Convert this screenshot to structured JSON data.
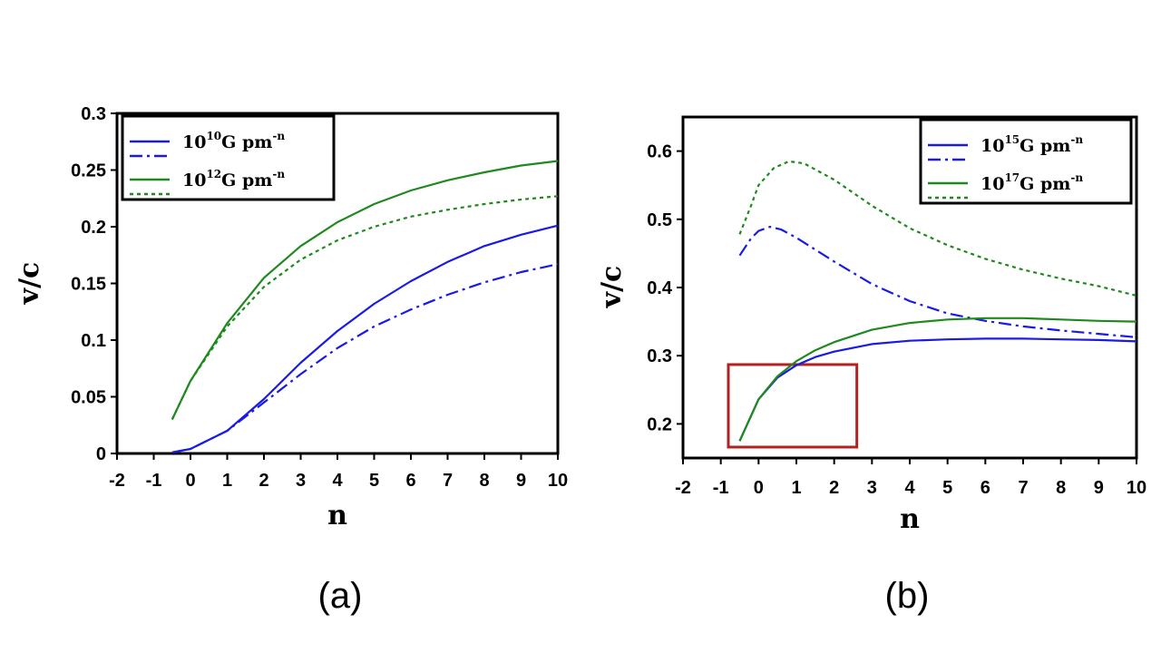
{
  "chart_data": [
    {
      "type": "line",
      "caption": "(a)",
      "xlabel": "n",
      "ylabel": "v/c",
      "xlim": [
        -2,
        10
      ],
      "ylim": [
        0,
        0.3
      ],
      "xticks": [
        "-2",
        "-1",
        "0",
        "1",
        "2",
        "3",
        "4",
        "5",
        "6",
        "7",
        "8",
        "9",
        "10"
      ],
      "yticks": [
        "0",
        "0.05",
        "0.1",
        "0.15",
        "0.2",
        "0.25",
        "0.3"
      ],
      "legend_position": "top-left",
      "legend": [
        {
          "base": "10",
          "exp": "10",
          "rest": "G pm",
          "sup": "-n"
        },
        {
          "base": "10",
          "exp": "12",
          "rest": "G pm",
          "sup": "-n"
        }
      ],
      "series": [
        {
          "name": "10^10 G pm^-n (solid)",
          "color": "#1a1ae6",
          "dash": "solid",
          "x": [
            -0.5,
            0,
            1,
            2,
            3,
            4,
            5,
            6,
            7,
            8,
            9,
            10
          ],
          "y": [
            0.001,
            0.004,
            0.02,
            0.048,
            0.08,
            0.108,
            0.132,
            0.152,
            0.169,
            0.183,
            0.193,
            0.201
          ]
        },
        {
          "name": "10^10 G pm^-n (dash-dot)",
          "color": "#1a1ae6",
          "dash": "dashdot",
          "x": [
            -0.5,
            0,
            1,
            2,
            3,
            4,
            5,
            6,
            7,
            8,
            9,
            10
          ],
          "y": [
            0.001,
            0.004,
            0.02,
            0.045,
            0.07,
            0.093,
            0.112,
            0.127,
            0.14,
            0.151,
            0.16,
            0.167
          ]
        },
        {
          "name": "10^12 G pm^-n (solid)",
          "color": "#1e8a1e",
          "dash": "solid",
          "x": [
            -0.5,
            0,
            1,
            2,
            3,
            4,
            5,
            6,
            7,
            8,
            9,
            10
          ],
          "y": [
            0.03,
            0.064,
            0.115,
            0.155,
            0.183,
            0.204,
            0.22,
            0.232,
            0.241,
            0.248,
            0.254,
            0.258
          ]
        },
        {
          "name": "10^12 G pm^-n (dotted)",
          "color": "#1e8a1e",
          "dash": "dot",
          "x": [
            -0.5,
            0,
            1,
            2,
            3,
            4,
            5,
            6,
            7,
            8,
            9,
            10
          ],
          "y": [
            0.03,
            0.064,
            0.112,
            0.147,
            0.171,
            0.188,
            0.2,
            0.209,
            0.215,
            0.22,
            0.224,
            0.227
          ]
        }
      ]
    },
    {
      "type": "line",
      "caption": "(b)",
      "xlabel": "n",
      "ylabel": "v/c",
      "xlim": [
        -2,
        10
      ],
      "ylim": [
        0.15,
        0.65
      ],
      "xticks": [
        "-2",
        "-1",
        "0",
        "1",
        "2",
        "3",
        "4",
        "5",
        "6",
        "7",
        "8",
        "9",
        "10"
      ],
      "yticks": [
        "0.2",
        "0.3",
        "0.4",
        "0.5",
        "0.6"
      ],
      "legend_position": "top-right",
      "legend": [
        {
          "base": "10",
          "exp": "15",
          "rest": "G pm",
          "sup": "-n"
        },
        {
          "base": "10",
          "exp": "17",
          "rest": "G pm",
          "sup": "-n"
        }
      ],
      "highlight_box": {
        "x": [
          -0.8,
          2.6
        ],
        "y": [
          0.166,
          0.287
        ],
        "color": "#b22222"
      },
      "series": [
        {
          "name": "10^15 G pm^-n (solid)",
          "color": "#1a1ae6",
          "dash": "solid",
          "x": [
            -0.5,
            0,
            0.5,
            1,
            1.5,
            2,
            3,
            4,
            5,
            6,
            7,
            8,
            9,
            10
          ],
          "y": [
            0.175,
            0.236,
            0.268,
            0.286,
            0.298,
            0.306,
            0.317,
            0.322,
            0.324,
            0.325,
            0.325,
            0.324,
            0.323,
            0.321
          ]
        },
        {
          "name": "10^15 G pm^-n (dash-dot)",
          "color": "#1a1ae6",
          "dash": "dashdot",
          "x": [
            -0.5,
            -0.2,
            0,
            0.3,
            0.6,
            1,
            2,
            3,
            4,
            5,
            6,
            7,
            8,
            9,
            10
          ],
          "y": [
            0.447,
            0.472,
            0.483,
            0.489,
            0.485,
            0.473,
            0.438,
            0.405,
            0.38,
            0.362,
            0.351,
            0.343,
            0.337,
            0.332,
            0.327
          ]
        },
        {
          "name": "10^17 G pm^-n (solid)",
          "color": "#1e8a1e",
          "dash": "solid",
          "x": [
            -0.5,
            0,
            0.5,
            1,
            1.5,
            2,
            3,
            4,
            5,
            6,
            7,
            8,
            9,
            10
          ],
          "y": [
            0.175,
            0.236,
            0.27,
            0.292,
            0.308,
            0.32,
            0.338,
            0.348,
            0.353,
            0.355,
            0.355,
            0.353,
            0.351,
            0.35
          ]
        },
        {
          "name": "10^17 G pm^-n (dotted)",
          "color": "#1e8a1e",
          "dash": "dot",
          "x": [
            -0.5,
            -0.2,
            0,
            0.4,
            0.8,
            1.2,
            2,
            3,
            4,
            5,
            6,
            7,
            8,
            9,
            10
          ],
          "y": [
            0.478,
            0.52,
            0.55,
            0.575,
            0.585,
            0.582,
            0.558,
            0.52,
            0.487,
            0.462,
            0.442,
            0.426,
            0.413,
            0.402,
            0.388
          ]
        }
      ]
    }
  ]
}
